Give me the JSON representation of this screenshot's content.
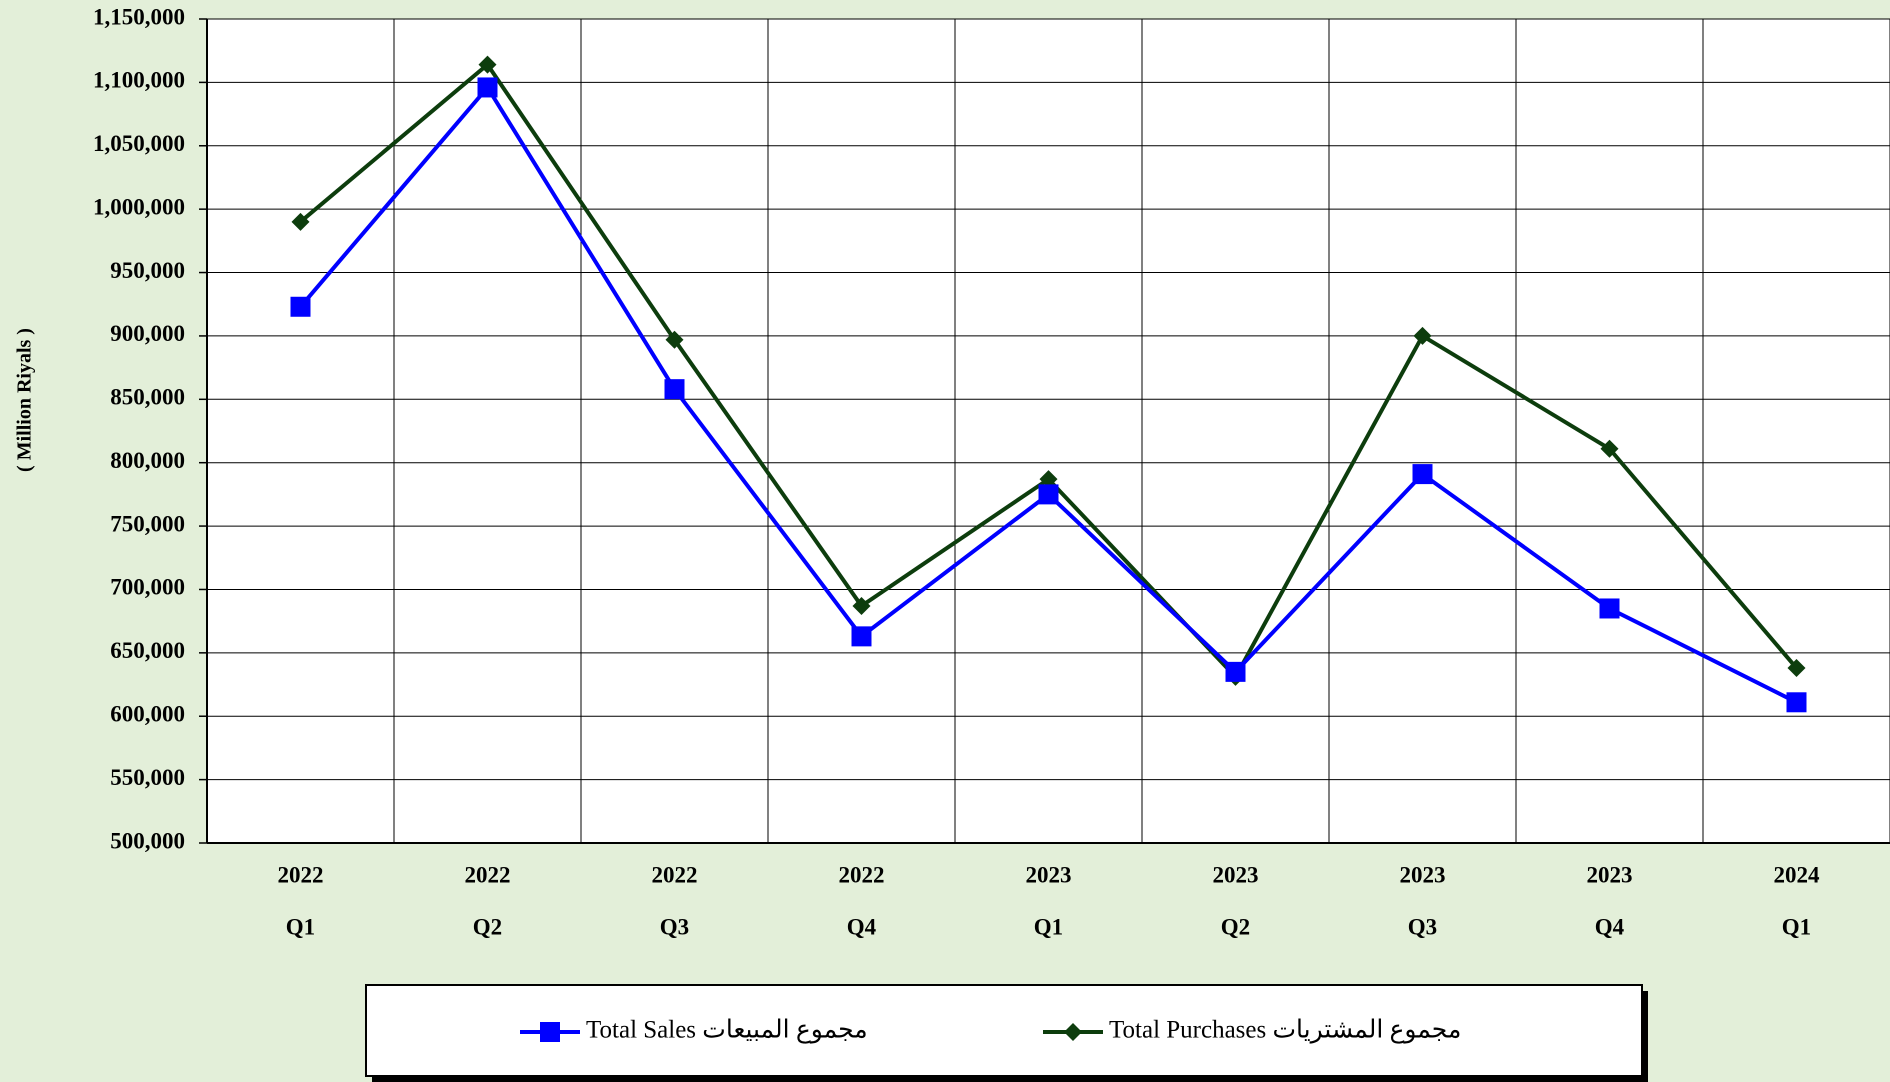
{
  "chart_data": {
    "type": "line",
    "y_label": "( Million Riyals )",
    "categories": [
      [
        "2022",
        "Q1"
      ],
      [
        "2022",
        "Q2"
      ],
      [
        "2022",
        "Q3"
      ],
      [
        "2022",
        "Q4"
      ],
      [
        "2023",
        "Q1"
      ],
      [
        "2023",
        "Q2"
      ],
      [
        "2023",
        "Q3"
      ],
      [
        "2023",
        "Q4"
      ],
      [
        "2024",
        "Q1"
      ]
    ],
    "series": [
      {
        "name": "Total Sales   مجموع المبيعات",
        "color": "#0000ff",
        "marker": "square",
        "values": [
          923000,
          1096000,
          858000,
          663000,
          775000,
          635000,
          791000,
          685000,
          611000
        ]
      },
      {
        "name": "Total Purchases     مجموع المشتريات",
        "color": "#0d3d0d",
        "marker": "diamond",
        "values": [
          990000,
          1114000,
          897000,
          687000,
          787000,
          631000,
          900000,
          811000,
          638000
        ]
      }
    ],
    "ylim": [
      500000,
      1150000
    ],
    "yticks": [
      {
        "value": 500000,
        "label": "500,000"
      },
      {
        "value": 550000,
        "label": "550,000"
      },
      {
        "value": 600000,
        "label": "600,000"
      },
      {
        "value": 650000,
        "label": "650,000"
      },
      {
        "value": 700000,
        "label": "700,000"
      },
      {
        "value": 750000,
        "label": "750,000"
      },
      {
        "value": 800000,
        "label": "800,000"
      },
      {
        "value": 850000,
        "label": "850,000"
      },
      {
        "value": 900000,
        "label": "900,000"
      },
      {
        "value": 950000,
        "label": "950,000"
      },
      {
        "value": 1000000,
        "label": "1,000,000"
      },
      {
        "value": 1050000,
        "label": "1,050,000"
      },
      {
        "value": 1100000,
        "label": "1,100,000"
      },
      {
        "value": 1150000,
        "label": "1,150,000"
      }
    ],
    "grid": true,
    "legend": "bottom"
  }
}
